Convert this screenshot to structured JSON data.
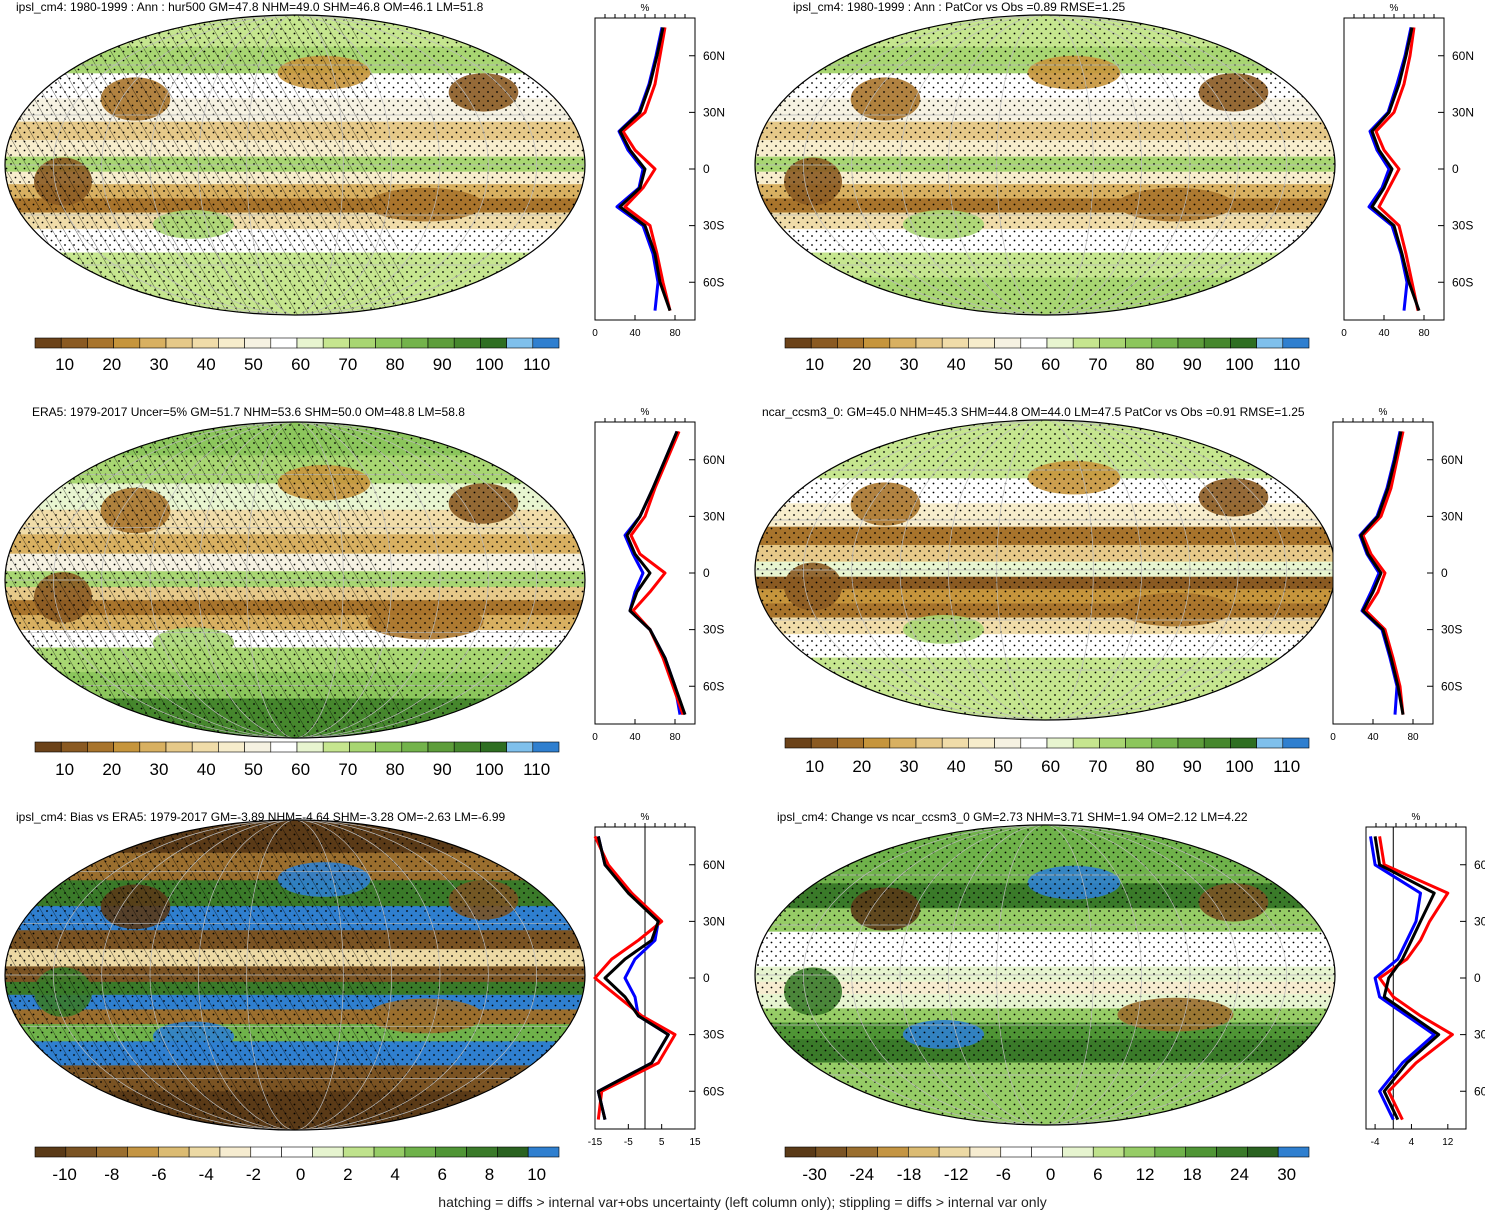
{
  "caption": "hatching = diffs > internal var+obs uncertainty (left column only); stippling = diffs > internal var only",
  "profile_unit": "%",
  "lat_ticks": [
    "60N",
    "30N",
    "0",
    "30S",
    "60S"
  ],
  "palette_main": [
    "#6b4219",
    "#8a5a22",
    "#a8742c",
    "#c6953c",
    "#d8b061",
    "#e6c989",
    "#f0dca9",
    "#f7edcc",
    "#f6f2e2",
    "#ffffff",
    "#e8f5d0",
    "#c6e68f",
    "#a8d672",
    "#8cc65c",
    "#73b34b",
    "#5d9d3a",
    "#46872d",
    "#2e6e21",
    "#7fc0ec",
    "#2f7fcf"
  ],
  "palette_bias": [
    "#5a3a17",
    "#7a5323",
    "#9a6e2e",
    "#c49543",
    "#dbbb72",
    "#ecd9a4",
    "#f6ecd0",
    "#ffffff",
    "#ffffff",
    "#e6f4cf",
    "#bfe28c",
    "#96cc66",
    "#6fb24a",
    "#4f9535",
    "#3a7a29",
    "#2a6220",
    "#2f7fcf"
  ],
  "panels": [
    {
      "id": "top-left",
      "title": "ipsl_cm4: 1980-1999 : Ann : hur500 GM=47.8 NHM=49.0 SHM=46.8 OM=46.1 LM=51.8",
      "colorbar_labels": [
        "10",
        "20",
        "30",
        "40",
        "50",
        "60",
        "70",
        "80",
        "90",
        "100",
        "110"
      ],
      "profile_xticks": [
        "0",
        "40",
        "80"
      ],
      "profile_xrange": [
        0,
        100
      ]
    },
    {
      "id": "top-right",
      "title": "ipsl_cm4: 1980-1999 : Ann : PatCor vs Obs =0.89 RMSE=1.25",
      "colorbar_labels": [
        "10",
        "20",
        "30",
        "40",
        "50",
        "60",
        "70",
        "80",
        "90",
        "100",
        "110"
      ],
      "profile_xticks": [
        "0",
        "40",
        "80"
      ],
      "profile_xrange": [
        0,
        100
      ]
    },
    {
      "id": "mid-left",
      "title": "ERA5: 1979-2017 Uncer=5% GM=51.7 NHM=53.6 SHM=50.0 OM=48.8 LM=58.8",
      "colorbar_labels": [
        "10",
        "20",
        "30",
        "40",
        "50",
        "60",
        "70",
        "80",
        "90",
        "100",
        "110"
      ],
      "profile_xticks": [
        "0",
        "40",
        "80"
      ],
      "profile_xrange": [
        0,
        100
      ]
    },
    {
      "id": "mid-right",
      "title": "ncar_ccsm3_0: GM=45.0 NHM=45.3 SHM=44.8 OM=44.0 LM=47.5 PatCor vs Obs =0.91 RMSE=1.25",
      "colorbar_labels": [
        "10",
        "20",
        "30",
        "40",
        "50",
        "60",
        "70",
        "80",
        "90",
        "100",
        "110"
      ],
      "profile_xticks": [
        "0",
        "40",
        "80"
      ],
      "profile_xrange": [
        0,
        100
      ]
    },
    {
      "id": "bottom-left",
      "title": "ipsl_cm4: Bias vs ERA5: 1979-2017 GM=-3.89 NHM=-4.64 SHM=-3.28 OM=-2.63 LM=-6.99",
      "colorbar_labels": [
        "-10",
        "-8",
        "-6",
        "-4",
        "-2",
        "0",
        "2",
        "4",
        "6",
        "8",
        "10"
      ],
      "profile_xticks": [
        "-15",
        "-5",
        "5",
        "15"
      ],
      "profile_xrange": [
        -15,
        15
      ]
    },
    {
      "id": "bottom-right",
      "title": "ipsl_cm4: Change vs ncar_ccsm3_0 GM=2.73 NHM=3.71 SHM=1.94 OM=2.12 LM=4.22",
      "colorbar_labels": [
        "-30",
        "-24",
        "-18",
        "-12",
        "-6",
        "0",
        "6",
        "12",
        "18",
        "24",
        "30"
      ],
      "profile_xticks": [
        "-4",
        "4",
        "12"
      ],
      "profile_xrange": [
        -6,
        16
      ]
    }
  ],
  "chart_data": {
    "type": "map-with-zonal-profiles",
    "profile_lat_range": [
      -80,
      80
    ],
    "profiles": [
      {
        "panel": "top-left",
        "lat": [
          -75,
          -60,
          -45,
          -30,
          -20,
          -10,
          0,
          10,
          20,
          30,
          45,
          60,
          75
        ],
        "series": [
          {
            "color": "#000000",
            "values": [
              75,
              65,
              60,
              50,
              25,
              45,
              50,
              35,
              25,
              45,
              55,
              62,
              68
            ]
          },
          {
            "color": "#ff0000",
            "values": [
              75,
              68,
              62,
              55,
              30,
              48,
              60,
              40,
              28,
              50,
              60,
              65,
              70
            ]
          },
          {
            "color": "#0000ff",
            "values": [
              60,
              63,
              58,
              48,
              22,
              44,
              48,
              33,
              24,
              44,
              54,
              61,
              67
            ]
          }
        ]
      },
      {
        "panel": "top-right",
        "lat": [
          -75,
          -60,
          -45,
          -30,
          -20,
          -10,
          0,
          10,
          20,
          30,
          45,
          60,
          75
        ],
        "series": [
          {
            "color": "#000000",
            "values": [
              75,
              65,
              58,
              50,
              28,
              40,
              48,
              35,
              28,
              45,
              55,
              62,
              68
            ]
          },
          {
            "color": "#ff0000",
            "values": [
              74,
              68,
              62,
              55,
              35,
              45,
              55,
              40,
              32,
              50,
              60,
              66,
              70
            ]
          },
          {
            "color": "#0000ff",
            "values": [
              60,
              63,
              57,
              48,
              25,
              38,
              45,
              33,
              26,
              44,
              53,
              61,
              67
            ]
          }
        ]
      },
      {
        "panel": "mid-left",
        "lat": [
          -75,
          -60,
          -45,
          -30,
          -20,
          -10,
          0,
          10,
          20,
          30,
          45,
          60,
          75
        ],
        "series": [
          {
            "color": "#000000",
            "values": [
              90,
              80,
              70,
              55,
              35,
              42,
              55,
              40,
              32,
              45,
              58,
              70,
              82
            ]
          },
          {
            "color": "#ff0000",
            "values": [
              88,
              78,
              68,
              55,
              38,
              55,
              70,
              45,
              36,
              50,
              60,
              72,
              84
            ]
          },
          {
            "color": "#0000ff",
            "values": [
              85,
              80,
              70,
              55,
              35,
              40,
              48,
              38,
              30,
              45,
              58,
              70,
              82
            ]
          }
        ]
      },
      {
        "panel": "mid-right",
        "lat": [
          -75,
          -60,
          -45,
          -30,
          -20,
          -10,
          0,
          10,
          20,
          30,
          45,
          60,
          75
        ],
        "series": [
          {
            "color": "#000000",
            "values": [
              70,
              65,
              58,
              50,
              30,
              40,
              48,
              35,
              28,
              45,
              55,
              62,
              68
            ]
          },
          {
            "color": "#ff0000",
            "values": [
              70,
              67,
              60,
              52,
              33,
              45,
              52,
              38,
              30,
              48,
              58,
              64,
              70
            ]
          },
          {
            "color": "#0000ff",
            "values": [
              62,
              64,
              57,
              49,
              29,
              38,
              46,
              34,
              27,
              44,
              54,
              61,
              67
            ]
          }
        ]
      },
      {
        "panel": "bottom-left",
        "lat": [
          -75,
          -60,
          -45,
          -30,
          -20,
          -10,
          0,
          10,
          20,
          30,
          45,
          60,
          75
        ],
        "series": [
          {
            "color": "#000000",
            "values": [
              -12,
              -14,
              2,
              7,
              -2,
              -6,
              -12,
              -6,
              2,
              4,
              -5,
              -12,
              -14
            ]
          },
          {
            "color": "#ff0000",
            "values": [
              -14,
              -13,
              4,
              9,
              -1,
              -8,
              -15,
              -10,
              -2,
              5,
              -4,
              -11,
              -15
            ]
          },
          {
            "color": "#0000ff",
            "values": [
              -12,
              -14,
              2,
              7,
              -2,
              -3,
              -6,
              -3,
              3,
              4,
              -4,
              -12,
              -14
            ]
          }
        ]
      },
      {
        "panel": "bottom-right",
        "lat": [
          -75,
          -60,
          -45,
          -30,
          -20,
          -10,
          0,
          10,
          20,
          30,
          45,
          60,
          75
        ],
        "series": [
          {
            "color": "#000000",
            "values": [
              1,
              -2,
              3,
              10,
              4,
              -2,
              -1,
              2,
              4,
              6,
              9,
              -3,
              -4
            ]
          },
          {
            "color": "#ff0000",
            "values": [
              2,
              -1,
              5,
              13,
              6,
              0,
              -3,
              3,
              6,
              8,
              12,
              -2,
              -3
            ]
          },
          {
            "color": "#0000ff",
            "values": [
              0,
              -3,
              2,
              9,
              3,
              -3,
              -4,
              1,
              3,
              5,
              6,
              -4,
              -5
            ]
          }
        ]
      }
    ]
  }
}
